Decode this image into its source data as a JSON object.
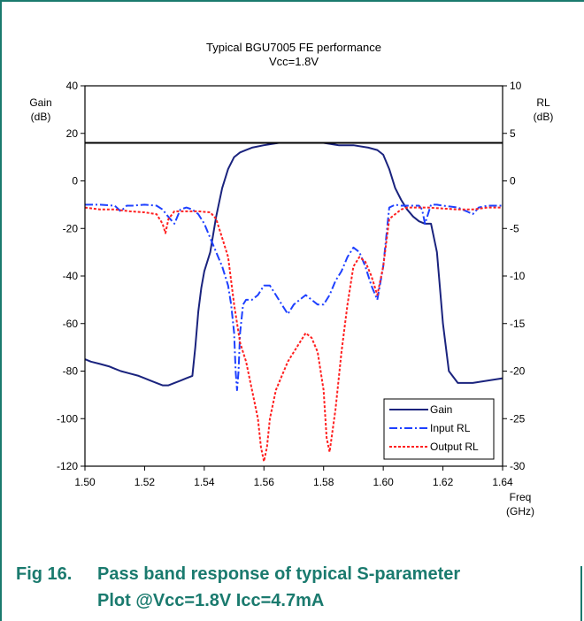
{
  "chart_data": {
    "type": "line",
    "title": "Typical BGU7005 FE performance",
    "subtitle": "Vcc=1.8V",
    "xlabel": "Freq",
    "xlabel_unit": "(GHz)",
    "ylabel_left": "Gain",
    "ylabel_left_unit": "(dB)",
    "ylabel_right": "RL",
    "ylabel_right_unit": "(dB)",
    "xlim": [
      1.5,
      1.64
    ],
    "ylim_left": [
      -120,
      40
    ],
    "ylim_right": [
      -30,
      10
    ],
    "x_ticks": [
      "1.50",
      "1.52",
      "1.54",
      "1.56",
      "1.58",
      "1.60",
      "1.62",
      "1.64"
    ],
    "y_left_ticks": [
      "40",
      "20",
      "0",
      "-20",
      "-40",
      "-60",
      "-80",
      "-100",
      "-120"
    ],
    "y_right_ticks": [
      "10",
      "5",
      "0",
      "-5",
      "-10",
      "-15",
      "-20",
      "-25",
      "-30"
    ],
    "reference_line_left": 16,
    "legend_position": "bottom-right",
    "series": [
      {
        "name": "Gain",
        "axis": "left",
        "color": "#1a237e",
        "dash": "solid",
        "x": [
          1.5,
          1.502,
          1.505,
          1.508,
          1.51,
          1.512,
          1.515,
          1.518,
          1.52,
          1.522,
          1.524,
          1.526,
          1.528,
          1.53,
          1.532,
          1.534,
          1.536,
          1.537,
          1.538,
          1.539,
          1.54,
          1.542,
          1.544,
          1.546,
          1.548,
          1.55,
          1.552,
          1.554,
          1.556,
          1.56,
          1.565,
          1.57,
          1.575,
          1.58,
          1.585,
          1.59,
          1.595,
          1.598,
          1.6,
          1.602,
          1.604,
          1.606,
          1.608,
          1.61,
          1.612,
          1.614,
          1.616,
          1.618,
          1.62,
          1.622,
          1.625,
          1.63,
          1.635,
          1.64
        ],
        "y": [
          -75,
          -76,
          -77,
          -78,
          -79,
          -80,
          -81,
          -82,
          -83,
          -84,
          -85,
          -86,
          -86,
          -85,
          -84,
          -83,
          -82,
          -70,
          -55,
          -45,
          -38,
          -30,
          -15,
          -3,
          5,
          10,
          12,
          13,
          14,
          15,
          16,
          16,
          16,
          16,
          15,
          15,
          14,
          13,
          11,
          5,
          -3,
          -8,
          -12,
          -15,
          -17,
          -18,
          -18,
          -30,
          -60,
          -80,
          -85,
          -85,
          -84,
          -83
        ]
      },
      {
        "name": "Input RL",
        "axis": "right",
        "color": "#1e40ff",
        "dash": "dashdot",
        "x": [
          1.5,
          1.505,
          1.51,
          1.512,
          1.514,
          1.516,
          1.52,
          1.524,
          1.526,
          1.528,
          1.53,
          1.532,
          1.534,
          1.536,
          1.538,
          1.54,
          1.542,
          1.544,
          1.546,
          1.548,
          1.549,
          1.55,
          1.5505,
          1.551,
          1.5515,
          1.552,
          1.553,
          1.554,
          1.556,
          1.558,
          1.56,
          1.562,
          1.564,
          1.566,
          1.568,
          1.57,
          1.572,
          1.574,
          1.576,
          1.578,
          1.58,
          1.582,
          1.584,
          1.586,
          1.588,
          1.59,
          1.592,
          1.594,
          1.596,
          1.598,
          1.6,
          1.602,
          1.604,
          1.606,
          1.608,
          1.61,
          1.612,
          1.613,
          1.614,
          1.616,
          1.618,
          1.62,
          1.625,
          1.628,
          1.63,
          1.632,
          1.635,
          1.64
        ],
        "y": [
          -2.5,
          -2.5,
          -2.6,
          -3.2,
          -2.6,
          -2.6,
          -2.5,
          -2.6,
          -3,
          -3.8,
          -4.5,
          -3,
          -2.8,
          -3,
          -3.5,
          -4.5,
          -6,
          -7.5,
          -9,
          -11,
          -13,
          -16,
          -20,
          -22,
          -20,
          -16,
          -13,
          -12.5,
          -12.5,
          -12,
          -11,
          -11,
          -12,
          -13,
          -14,
          -13,
          -12.5,
          -12,
          -12.5,
          -13,
          -13,
          -12,
          -10.5,
          -9.5,
          -8,
          -7,
          -7.5,
          -9,
          -11,
          -12.5,
          -9,
          -2.8,
          -2.5,
          -2.6,
          -2.6,
          -2.6,
          -2.6,
          -3,
          -4.5,
          -2.5,
          -2.5,
          -2.6,
          -2.8,
          -3.2,
          -3.5,
          -2.8,
          -2.6,
          -2.6
        ]
      },
      {
        "name": "Output RL",
        "axis": "right",
        "color": "#ff2020",
        "dash": "dotted",
        "x": [
          1.5,
          1.505,
          1.51,
          1.515,
          1.52,
          1.524,
          1.526,
          1.527,
          1.528,
          1.53,
          1.534,
          1.538,
          1.542,
          1.544,
          1.546,
          1.548,
          1.55,
          1.552,
          1.554,
          1.556,
          1.558,
          1.559,
          1.56,
          1.561,
          1.562,
          1.564,
          1.566,
          1.568,
          1.57,
          1.572,
          1.574,
          1.576,
          1.578,
          1.58,
          1.581,
          1.582,
          1.584,
          1.586,
          1.588,
          1.59,
          1.592,
          1.594,
          1.596,
          1.598,
          1.6,
          1.602,
          1.604,
          1.606,
          1.608,
          1.61,
          1.615,
          1.62,
          1.625,
          1.63,
          1.635,
          1.64
        ],
        "y": [
          -2.8,
          -3,
          -3,
          -3.2,
          -3.3,
          -3.5,
          -4.5,
          -5.5,
          -4,
          -3.2,
          -3.2,
          -3.2,
          -3.3,
          -4,
          -6,
          -8,
          -13,
          -17,
          -19,
          -22,
          -25,
          -28,
          -29.5,
          -28,
          -25,
          -22,
          -20.5,
          -19,
          -18,
          -17,
          -16,
          -16.5,
          -18,
          -22,
          -27,
          -28.5,
          -24,
          -18,
          -13,
          -9,
          -8,
          -8.5,
          -10,
          -12,
          -9,
          -4,
          -3.5,
          -3,
          -2.8,
          -2.8,
          -2.8,
          -2.9,
          -3,
          -3,
          -2.8,
          -2.8
        ]
      }
    ]
  },
  "caption": {
    "number": "Fig 16.",
    "line1": "Pass band response of typical S-parameter",
    "line2": "Plot @Vcc=1.8V Icc=4.7mA"
  }
}
